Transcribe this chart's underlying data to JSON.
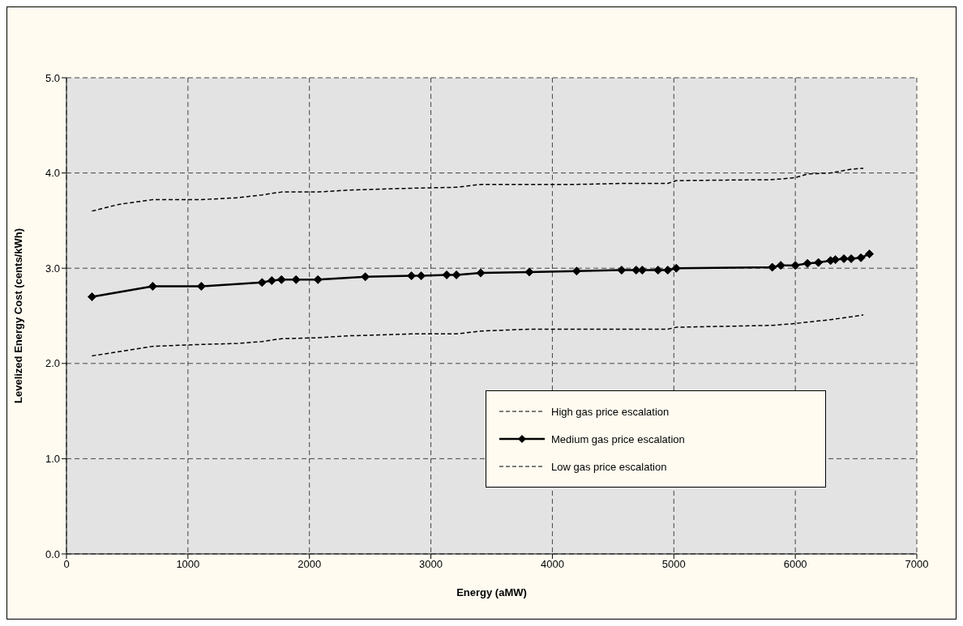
{
  "chart_data": {
    "type": "line",
    "xlabel": "Energy (aMW)",
    "ylabel": "Levelized Energy Cost (cents/kWh)",
    "xlim": [
      0,
      7000
    ],
    "xticks": [
      0,
      1000,
      2000,
      3000,
      4000,
      5000,
      6000,
      7000
    ],
    "ylim": [
      0,
      5
    ],
    "yticks": [
      {
        "value": 0,
        "label": "0.0"
      },
      {
        "value": 1,
        "label": "1.0"
      },
      {
        "value": 2,
        "label": "2.0"
      },
      {
        "value": 3,
        "label": "3.0"
      },
      {
        "value": 4,
        "label": "4.0"
      },
      {
        "value": 5,
        "label": "5.0"
      }
    ],
    "grid": true,
    "legend": "bottom right",
    "series": [
      {
        "name": "High gas price escalation",
        "color": "#000000",
        "line_style": "dashed",
        "marker": "none",
        "x": [
          210,
          430,
          710,
          1110,
          1410,
          1610,
          1770,
          2070,
          2320,
          2840,
          3210,
          3410,
          4200,
          4570,
          4950,
          5020,
          5810,
          6000,
          6100,
          6290,
          6460,
          6560
        ],
        "values": [
          3.6,
          3.67,
          3.72,
          3.72,
          3.74,
          3.77,
          3.8,
          3.8,
          3.82,
          3.84,
          3.85,
          3.88,
          3.88,
          3.89,
          3.89,
          3.92,
          3.93,
          3.95,
          3.99,
          4.0,
          4.04,
          4.05
        ]
      },
      {
        "name": "Medium gas price escalation",
        "color": "#000000",
        "line_style": "solid",
        "marker": "diamond",
        "x": [
          210,
          710,
          1110,
          1610,
          1690,
          1770,
          1890,
          2070,
          2460,
          2840,
          2920,
          3130,
          3210,
          3410,
          3810,
          4200,
          4570,
          4690,
          4740,
          4870,
          4950,
          5020,
          5810,
          5880,
          6000,
          6100,
          6190,
          6290,
          6330,
          6400,
          6460,
          6540,
          6610
        ],
        "values": [
          2.7,
          2.81,
          2.81,
          2.85,
          2.87,
          2.88,
          2.88,
          2.88,
          2.91,
          2.92,
          2.92,
          2.93,
          2.93,
          2.95,
          2.96,
          2.97,
          2.98,
          2.98,
          2.98,
          2.98,
          2.98,
          3.0,
          3.01,
          3.03,
          3.03,
          3.05,
          3.06,
          3.08,
          3.09,
          3.1,
          3.1,
          3.11,
          3.15
        ]
      },
      {
        "name": "Low  gas price escalation",
        "color": "#000000",
        "line_style": "dashed",
        "marker": "none",
        "x": [
          210,
          710,
          1110,
          1410,
          1610,
          1770,
          2070,
          2320,
          2840,
          3210,
          3410,
          3810,
          4950,
          5020,
          5810,
          6000,
          6290,
          6460,
          6560
        ],
        "values": [
          2.08,
          2.18,
          2.2,
          2.21,
          2.23,
          2.26,
          2.27,
          2.29,
          2.31,
          2.31,
          2.34,
          2.36,
          2.36,
          2.38,
          2.4,
          2.42,
          2.46,
          2.49,
          2.51
        ]
      }
    ]
  }
}
